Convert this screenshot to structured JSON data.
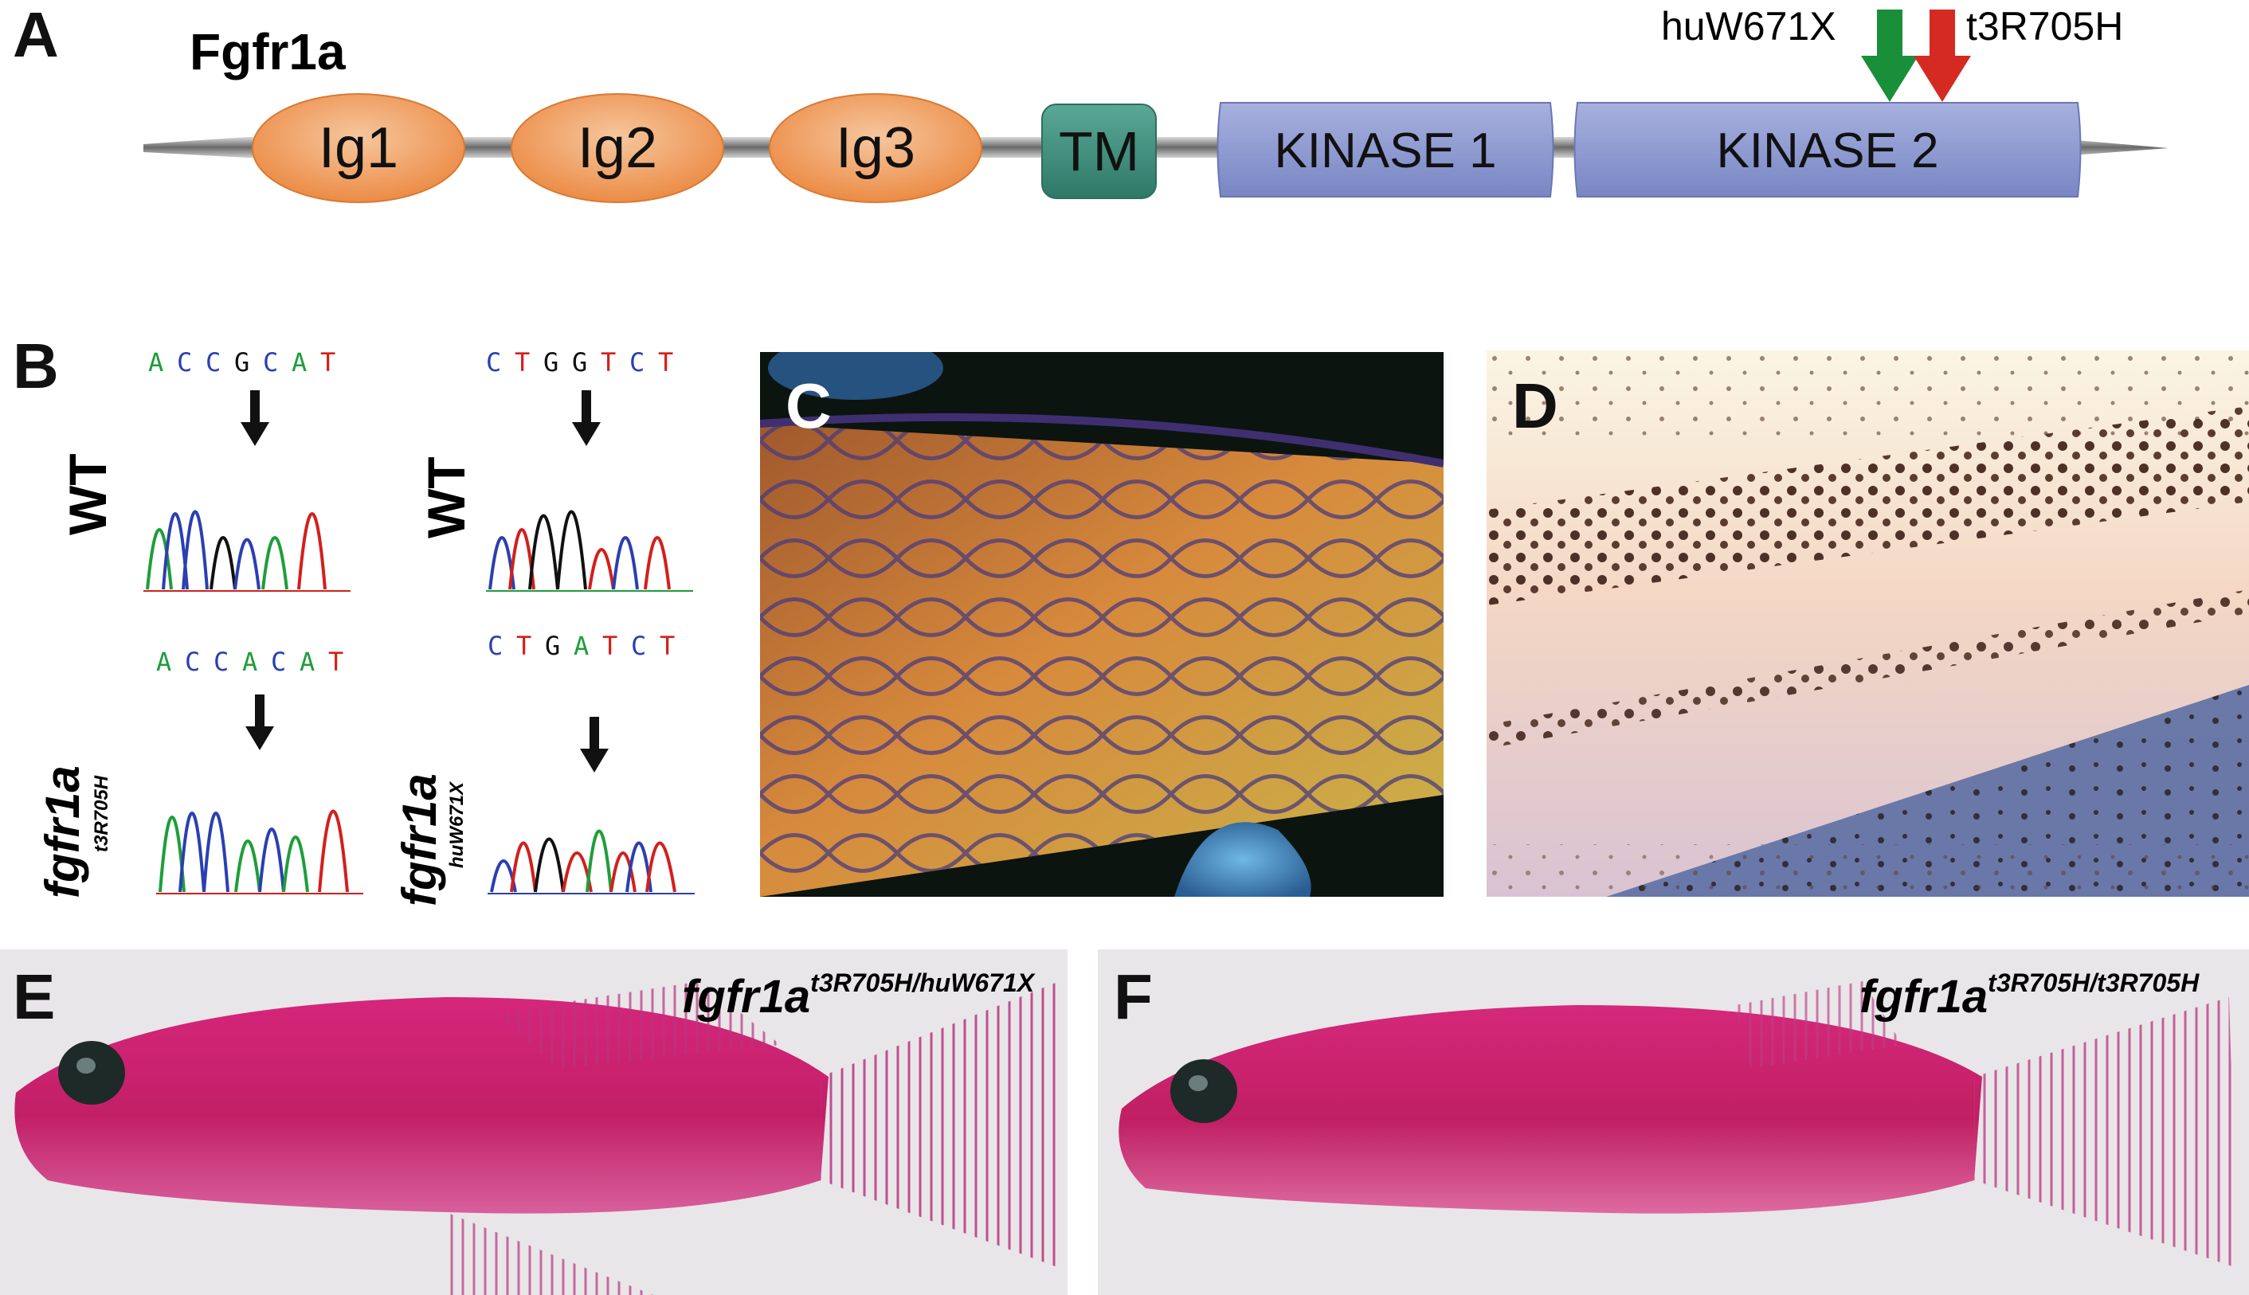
{
  "panels": {
    "A": "A",
    "B": "B",
    "C": "C",
    "D": "D",
    "E": "E",
    "F": "F"
  },
  "panel_a": {
    "protein": "Fgfr1a",
    "domains": {
      "ig1": "Ig1",
      "ig2": "Ig2",
      "ig3": "Ig3",
      "tm": "TM",
      "kinase1": "KINASE 1",
      "kinase2": "KINASE 2"
    },
    "mutations": {
      "hu": "huW671X",
      "t3": "t3R705H"
    },
    "colors": {
      "ig": "#ef9a58",
      "tm": "#3f8f7e",
      "kinase": "#8b98d0",
      "arrow_hu": "#1a8f3a",
      "arrow_t3": "#d42a22"
    }
  },
  "panel_b": {
    "wt": "WT",
    "left": {
      "wt_seq": [
        "A",
        "C",
        "C",
        "G",
        "C",
        "A",
        "T"
      ],
      "mut_seq": [
        "A",
        "C",
        "C",
        "A",
        "C",
        "A",
        "T"
      ],
      "mut_gene": "fgfr1a",
      "mut_allele": "t3R705H"
    },
    "right": {
      "wt_seq": [
        "C",
        "T",
        "G",
        "G",
        "T",
        "C",
        "T"
      ],
      "mut_seq": [
        "C",
        "T",
        "G",
        "A",
        "T",
        "C",
        "T"
      ],
      "mut_gene": "fgfr1a",
      "mut_allele": "huW671X"
    },
    "base_colors": {
      "A": "#1f9d3a",
      "C": "#2a3fb0",
      "G": "#111111",
      "T": "#d2201c"
    }
  },
  "panel_e": {
    "gene": "fgfr1a",
    "genotype": "t3R705H/huW671X"
  },
  "panel_f": {
    "gene": "fgfr1a",
    "genotype": "t3R705H/t3R705H"
  }
}
